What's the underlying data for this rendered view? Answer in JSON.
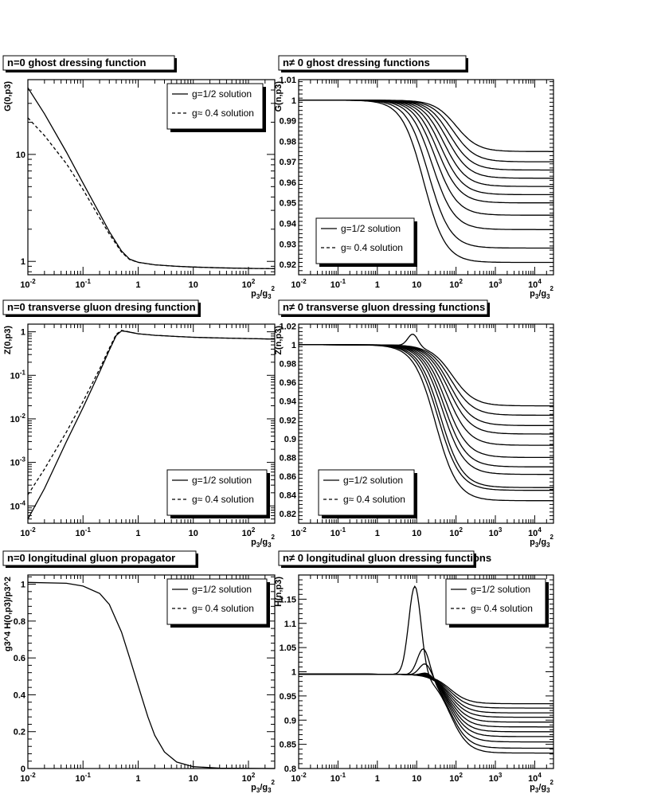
{
  "chart_data": [
    {
      "type": "line",
      "title": "n=0 ghost dressing function",
      "xlabel": "p3/g3^2",
      "ylabel": "G(0,p3)",
      "xscale": "log",
      "yscale": "log",
      "xlim": [
        0.01,
        300
      ],
      "ylim": [
        0.75,
        50
      ],
      "x_ticks": [
        "10^-2",
        "10^-1",
        "1",
        "10",
        "10^2"
      ],
      "y_ticks": [
        "1",
        "10"
      ],
      "legend": [
        "g=1/2 solution",
        "g≈ 0.4 solution"
      ],
      "legend_position": "top-right",
      "series": [
        {
          "name": "g=1/2 solution",
          "style": "solid",
          "x": [
            0.01,
            0.02,
            0.05,
            0.1,
            0.2,
            0.3,
            0.5,
            0.7,
            1,
            2,
            5,
            10,
            30,
            100,
            300
          ],
          "y": [
            42,
            24,
            10.5,
            5.4,
            2.8,
            1.9,
            1.25,
            1.05,
            0.98,
            0.93,
            0.9,
            0.885,
            0.87,
            0.86,
            0.855
          ]
        },
        {
          "name": "g≈ 0.4 solution",
          "style": "dashed",
          "x": [
            0.01,
            0.02,
            0.05,
            0.1,
            0.2,
            0.3,
            0.5,
            0.7,
            1,
            2,
            5,
            10,
            30,
            100,
            300
          ],
          "y": [
            22,
            15,
            8.2,
            4.7,
            2.55,
            1.8,
            1.22,
            1.04,
            0.98,
            0.93,
            0.9,
            0.885,
            0.87,
            0.86,
            0.855
          ]
        }
      ]
    },
    {
      "type": "line",
      "title": "n≠ 0 ghost dressing functions",
      "xlabel": "p3/g3^2",
      "ylabel": "G(n,p3)",
      "xscale": "log",
      "xlim": [
        0.01,
        30000
      ],
      "ylim": [
        0.915,
        1.01
      ],
      "x_ticks": [
        "10^-2",
        "10^-1",
        "1",
        "10",
        "10^2",
        "10^3",
        "10^4"
      ],
      "y_ticks": [
        "0.92",
        "0.93",
        "0.94",
        "0.95",
        "0.96",
        "0.97",
        "0.98",
        "0.99",
        "1",
        "1.01"
      ],
      "legend": [
        "g=1/2 solution",
        "g≈ 0.4 solution"
      ],
      "legend_position": "bottom-left",
      "series_family": {
        "x_mid": [
          15,
          20,
          25,
          30,
          35,
          42,
          50,
          60,
          70,
          85,
          100
        ],
        "plateau": [
          0.921,
          0.928,
          0.937,
          0.944,
          0.95,
          0.954,
          0.958,
          0.962,
          0.966,
          0.97,
          0.975
        ]
      }
    },
    {
      "type": "line",
      "title": "n=0 transverse gluon dresing function",
      "xlabel": "p3/g3^2",
      "ylabel": "Z(0,p3)",
      "xscale": "log",
      "yscale": "log",
      "xlim": [
        0.01,
        300
      ],
      "ylim": [
        4e-05,
        1.5
      ],
      "x_ticks": [
        "10^-2",
        "10^-1",
        "1",
        "10",
        "10^2"
      ],
      "y_ticks": [
        "10^-4",
        "10^-3",
        "10^-2",
        "10^-1",
        "1"
      ],
      "legend": [
        "g=1/2 solution",
        "g≈ 0.4 solution"
      ],
      "legend_position": "bottom-right",
      "series": [
        {
          "name": "g=1/2 solution",
          "style": "solid",
          "x": [
            0.01,
            0.02,
            0.05,
            0.1,
            0.2,
            0.3,
            0.4,
            0.5,
            0.6,
            0.8,
            1,
            2,
            5,
            10,
            30,
            100,
            300
          ],
          "y": [
            5e-05,
            0.00025,
            0.003,
            0.018,
            0.12,
            0.38,
            0.82,
            1.05,
            1.02,
            0.95,
            0.9,
            0.83,
            0.78,
            0.75,
            0.72,
            0.7,
            0.68
          ]
        },
        {
          "name": "g≈ 0.4 solution",
          "style": "dashed",
          "x": [
            0.01,
            0.02,
            0.05,
            0.1,
            0.2,
            0.3,
            0.4,
            0.5,
            0.6,
            0.8,
            1,
            2,
            5,
            10,
            30,
            100,
            300
          ],
          "y": [
            0.00018,
            0.0007,
            0.005,
            0.025,
            0.14,
            0.42,
            0.88,
            1.08,
            1.03,
            0.95,
            0.9,
            0.83,
            0.78,
            0.75,
            0.72,
            0.7,
            0.68
          ]
        }
      ]
    },
    {
      "type": "line",
      "title": "n≠ 0 transverse gluon dressing functions",
      "xlabel": "p3/g3^2",
      "ylabel": "Z(n,p3)",
      "xscale": "log",
      "xlim": [
        0.01,
        30000
      ],
      "ylim": [
        0.81,
        1.022
      ],
      "x_ticks": [
        "10^-2",
        "10^-1",
        "1",
        "10",
        "10^2",
        "10^3",
        "10^4"
      ],
      "y_ticks": [
        "0.82",
        "0.84",
        "0.86",
        "0.88",
        "0.9",
        "0.92",
        "0.94",
        "0.96",
        "0.98",
        "1",
        "1.02"
      ],
      "legend": [
        "g=1/2 solution",
        "g≈ 0.4 solution"
      ],
      "legend_position": "bottom-left",
      "series_family": {
        "x_mid": [
          30,
          35,
          40,
          45,
          50,
          55,
          60,
          65,
          70,
          75,
          80
        ],
        "plateau": [
          0.834,
          0.845,
          0.848,
          0.862,
          0.87,
          0.88,
          0.893,
          0.905,
          0.914,
          0.925,
          0.935
        ],
        "bump": {
          "x": 8,
          "peak": 1.013
        }
      }
    },
    {
      "type": "line",
      "title": "n=0 longitudinal gluon propagator",
      "xlabel": "p3/g3^2",
      "ylabel": "g3^4 H(0,p3)/p3^2",
      "xscale": "log",
      "xlim": [
        0.01,
        300
      ],
      "ylim": [
        0,
        1.05
      ],
      "x_ticks": [
        "10^-2",
        "10^-1",
        "1",
        "10",
        "10^2"
      ],
      "y_ticks": [
        "0",
        "0.2",
        "0.4",
        "0.6",
        "0.8",
        "1"
      ],
      "legend": [
        "g=1/2 solution",
        "g≈ 0.4 solution"
      ],
      "legend_position": "top-right",
      "series": [
        {
          "name": "g=1/2 solution",
          "style": "solid",
          "x": [
            0.01,
            0.05,
            0.1,
            0.2,
            0.3,
            0.5,
            0.7,
            1,
            1.5,
            2,
            3,
            5,
            10,
            30,
            300
          ],
          "y": [
            1.01,
            1.005,
            0.99,
            0.95,
            0.89,
            0.74,
            0.6,
            0.45,
            0.28,
            0.18,
            0.09,
            0.035,
            0.01,
            0.002,
            0
          ]
        }
      ]
    },
    {
      "type": "line",
      "title": "n≠ 0 longitudinal gluon dressing functions",
      "xlabel": "p3/g3^2",
      "ylabel": "H(n,p3)",
      "xscale": "log",
      "xlim": [
        0.01,
        30000
      ],
      "ylim": [
        0.8,
        1.2
      ],
      "x_ticks": [
        "10^-2",
        "10^-1",
        "1",
        "10",
        "10^2",
        "10^3",
        "10^4"
      ],
      "y_ticks": [
        "0.8",
        "0.85",
        "0.9",
        "0.95",
        "1",
        "1.05",
        "1.1",
        "1.15"
      ],
      "legend": [
        "g=1/2 solution",
        "g≈ 0.4 solution"
      ],
      "legend_position": "top-right",
      "series_family": {
        "plateau": [
          0.832,
          0.842,
          0.855,
          0.866,
          0.876,
          0.886,
          0.896,
          0.906,
          0.915,
          0.925,
          0.934
        ],
        "bumps": [
          {
            "x": 9,
            "peak": 1.18
          },
          {
            "x": 15,
            "peak": 1.055
          },
          {
            "x": 17,
            "peak": 1.025
          }
        ]
      }
    }
  ]
}
